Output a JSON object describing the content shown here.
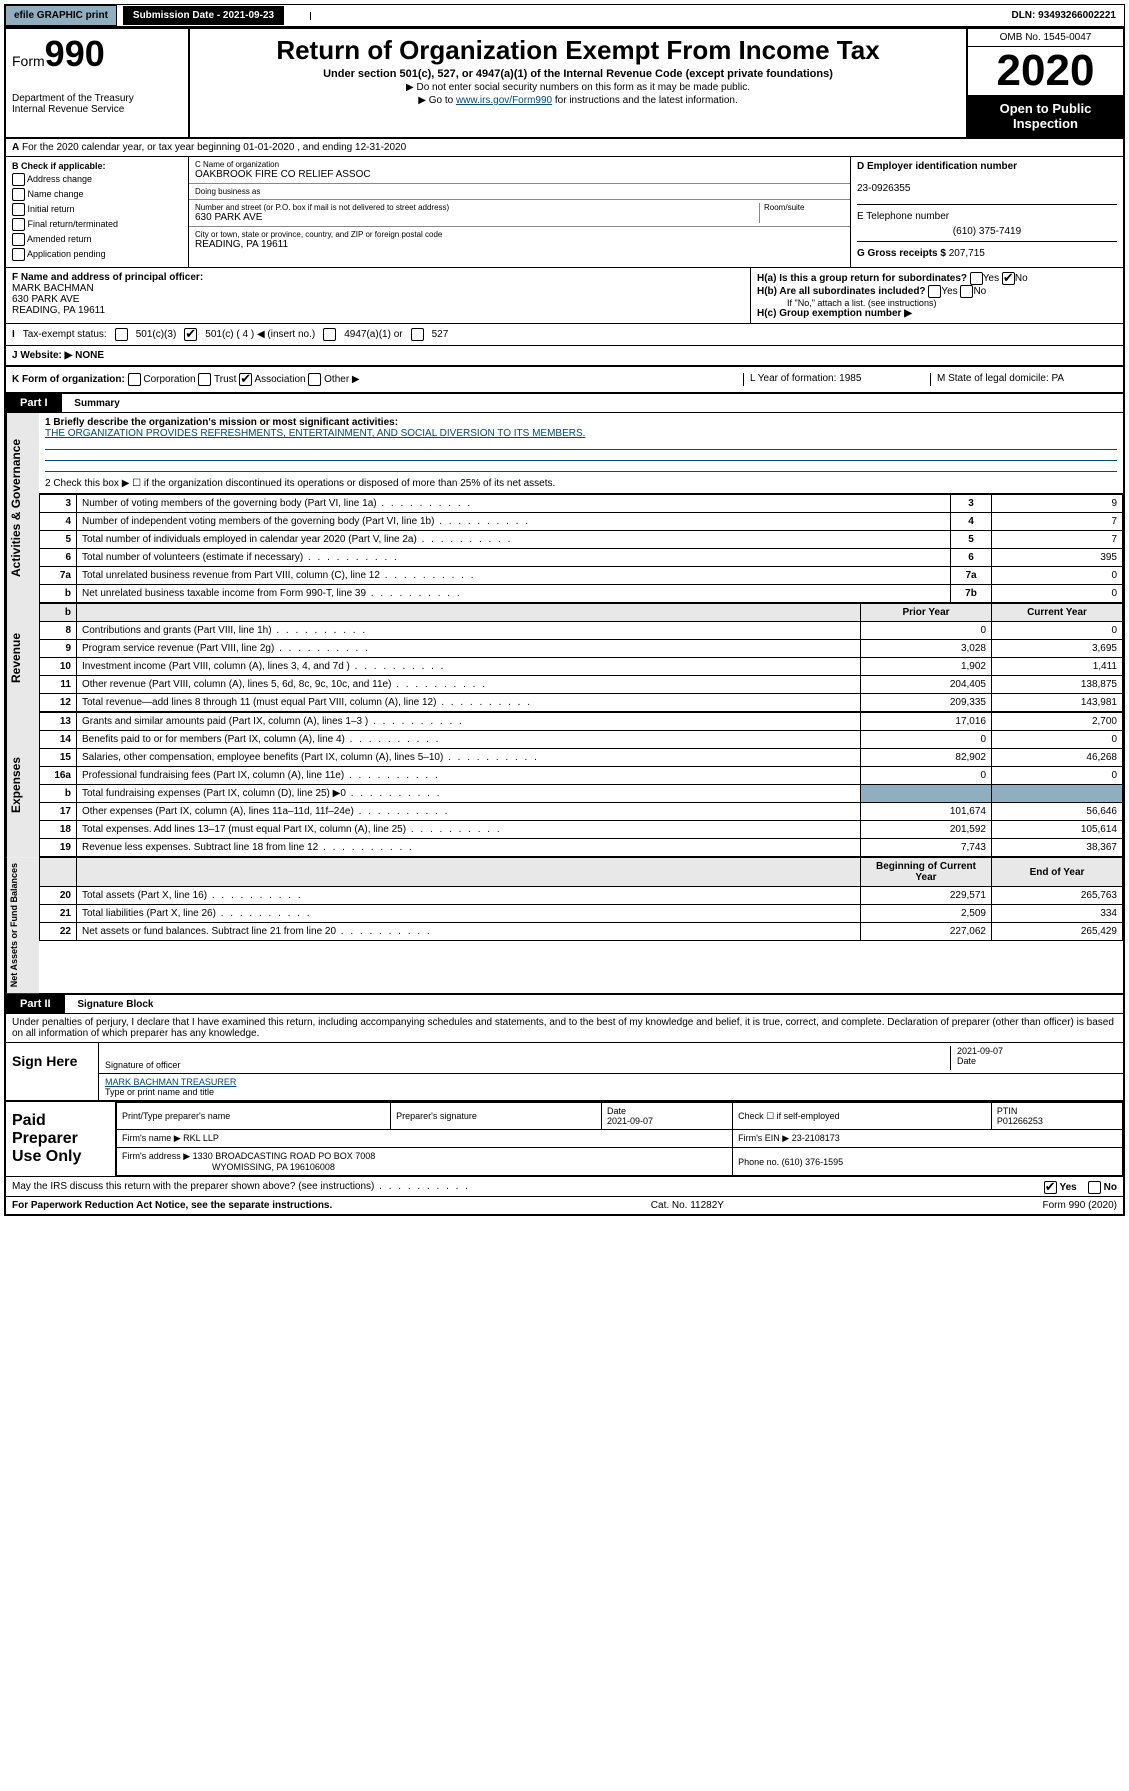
{
  "topbar": {
    "efile": "efile GRAPHIC print",
    "submission_label": "Submission Date - 2021-09-23",
    "dln": "DLN: 93493266002221"
  },
  "header": {
    "form_prefix": "Form",
    "form_number": "990",
    "dept": "Department of the Treasury",
    "irs": "Internal Revenue Service",
    "title": "Return of Organization Exempt From Income Tax",
    "subtitle": "Under section 501(c), 527, or 4947(a)(1) of the Internal Revenue Code (except private foundations)",
    "note1": "▶ Do not enter social security numbers on this form as it may be made public.",
    "note2_pre": "▶ Go to ",
    "note2_link": "www.irs.gov/Form990",
    "note2_post": " for instructions and the latest information.",
    "omb": "OMB No. 1545-0047",
    "year": "2020",
    "open": "Open to Public Inspection"
  },
  "rowA": "For the 2020 calendar year, or tax year beginning 01-01-2020  , and ending 12-31-2020",
  "sectionB": {
    "heading": "B Check if applicable:",
    "items": [
      "Address change",
      "Name change",
      "Initial return",
      "Final return/terminated",
      "Amended return",
      "Application pending"
    ]
  },
  "sectionC": {
    "name_lbl": "C Name of organization",
    "name": "OAKBROOK FIRE CO RELIEF ASSOC",
    "dba_lbl": "Doing business as",
    "dba": "",
    "addr_lbl": "Number and street (or P.O. box if mail is not delivered to street address)",
    "room_lbl": "Room/suite",
    "addr": "630 PARK AVE",
    "city_lbl": "City or town, state or province, country, and ZIP or foreign postal code",
    "city": "READING, PA  19611"
  },
  "sectionD": {
    "ein_lbl": "D Employer identification number",
    "ein": "23-0926355",
    "phone_lbl": "E Telephone number",
    "phone": "(610) 375-7419",
    "gross_lbl": "G Gross receipts $",
    "gross": "207,715"
  },
  "sectionF": {
    "lbl": "F Name and address of principal officer:",
    "name": "MARK BACHMAN",
    "addr1": "630 PARK AVE",
    "addr2": "READING, PA  19611"
  },
  "sectionH": {
    "ha": "H(a)  Is this a group return for subordinates?",
    "hb": "H(b)  Are all subordinates included?",
    "hb_note": "If \"No,\" attach a list. (see instructions)",
    "hc": "H(c)  Group exemption number ▶"
  },
  "taxExempt": {
    "lbl": "Tax-exempt status:",
    "c3": "501(c)(3)",
    "c": "501(c) ( 4 ) ◀ (insert no.)",
    "a1": "4947(a)(1) or",
    "s527": "527"
  },
  "websiteJ": {
    "lbl": "J  Website: ▶",
    "val": "NONE"
  },
  "rowK": {
    "k": "K Form of organization:",
    "corp": "Corporation",
    "trust": "Trust",
    "assoc": "Association",
    "other": "Other ▶",
    "l": "L Year of formation: 1985",
    "m": "M State of legal domicile: PA"
  },
  "part1": {
    "header": "Part I",
    "title": "Summary",
    "q1": "1  Briefly describe the organization's mission or most significant activities:",
    "mission": "THE ORGANIZATION PROVIDES REFRESHMENTS, ENTERTAINMENT, AND SOCIAL DIVERSION TO ITS MEMBERS.",
    "q2": "2  Check this box ▶ ☐  if the organization discontinued its operations or disposed of more than 25% of its net assets."
  },
  "side_labels": {
    "gov": "Activities & Governance",
    "rev": "Revenue",
    "exp": "Expenses",
    "net": "Net Assets or Fund Balances"
  },
  "governance_rows": [
    {
      "n": "3",
      "d": "Number of voting members of the governing body (Part VI, line 1a)",
      "box": "3",
      "v": "9"
    },
    {
      "n": "4",
      "d": "Number of independent voting members of the governing body (Part VI, line 1b)",
      "box": "4",
      "v": "7"
    },
    {
      "n": "5",
      "d": "Total number of individuals employed in calendar year 2020 (Part V, line 2a)",
      "box": "5",
      "v": "7"
    },
    {
      "n": "6",
      "d": "Total number of volunteers (estimate if necessary)",
      "box": "6",
      "v": "395"
    },
    {
      "n": "7a",
      "d": "Total unrelated business revenue from Part VIII, column (C), line 12",
      "box": "7a",
      "v": "0"
    },
    {
      "n": "b",
      "d": "Net unrelated business taxable income from Form 990-T, line 39",
      "box": "7b",
      "v": "0"
    }
  ],
  "year_headers": {
    "prior": "Prior Year",
    "current": "Current Year"
  },
  "revenue_rows": [
    {
      "n": "8",
      "d": "Contributions and grants (Part VIII, line 1h)",
      "p": "0",
      "c": "0"
    },
    {
      "n": "9",
      "d": "Program service revenue (Part VIII, line 2g)",
      "p": "3,028",
      "c": "3,695"
    },
    {
      "n": "10",
      "d": "Investment income (Part VIII, column (A), lines 3, 4, and 7d )",
      "p": "1,902",
      "c": "1,411"
    },
    {
      "n": "11",
      "d": "Other revenue (Part VIII, column (A), lines 5, 6d, 8c, 9c, 10c, and 11e)",
      "p": "204,405",
      "c": "138,875"
    },
    {
      "n": "12",
      "d": "Total revenue—add lines 8 through 11 (must equal Part VIII, column (A), line 12)",
      "p": "209,335",
      "c": "143,981"
    }
  ],
  "expense_rows": [
    {
      "n": "13",
      "d": "Grants and similar amounts paid (Part IX, column (A), lines 1–3 )",
      "p": "17,016",
      "c": "2,700"
    },
    {
      "n": "14",
      "d": "Benefits paid to or for members (Part IX, column (A), line 4)",
      "p": "0",
      "c": "0"
    },
    {
      "n": "15",
      "d": "Salaries, other compensation, employee benefits (Part IX, column (A), lines 5–10)",
      "p": "82,902",
      "c": "46,268"
    },
    {
      "n": "16a",
      "d": "Professional fundraising fees (Part IX, column (A), line 11e)",
      "p": "0",
      "c": "0"
    },
    {
      "n": "b",
      "d": "Total fundraising expenses (Part IX, column (D), line 25) ▶0",
      "p": "",
      "c": ""
    },
    {
      "n": "17",
      "d": "Other expenses (Part IX, column (A), lines 11a–11d, 11f–24e)",
      "p": "101,674",
      "c": "56,646"
    },
    {
      "n": "18",
      "d": "Total expenses. Add lines 13–17 (must equal Part IX, column (A), line 25)",
      "p": "201,592",
      "c": "105,614"
    },
    {
      "n": "19",
      "d": "Revenue less expenses. Subtract line 18 from line 12",
      "p": "7,743",
      "c": "38,367"
    }
  ],
  "net_headers": {
    "begin": "Beginning of Current Year",
    "end": "End of Year"
  },
  "net_rows": [
    {
      "n": "20",
      "d": "Total assets (Part X, line 16)",
      "p": "229,571",
      "c": "265,763"
    },
    {
      "n": "21",
      "d": "Total liabilities (Part X, line 26)",
      "p": "2,509",
      "c": "334"
    },
    {
      "n": "22",
      "d": "Net assets or fund balances. Subtract line 21 from line 20",
      "p": "227,062",
      "c": "265,429"
    }
  ],
  "part2": {
    "header": "Part II",
    "title": "Signature Block",
    "penalties": "Under penalties of perjury, I declare that I have examined this return, including accompanying schedules and statements, and to the best of my knowledge and belief, it is true, correct, and complete. Declaration of preparer (other than officer) is based on all information of which preparer has any knowledge."
  },
  "sign": {
    "here": "Sign Here",
    "sig_lbl": "Signature of officer",
    "date1": "2021-09-07",
    "date_lbl": "Date",
    "name": "MARK BACHMAN  TREASURER",
    "name_lbl": "Type or print name and title"
  },
  "preparer": {
    "label": "Paid Preparer Use Only",
    "h1": "Print/Type preparer's name",
    "h2": "Preparer's signature",
    "h3": "Date",
    "h4": "Check ☐ if self-employed",
    "h5": "PTIN",
    "date": "2021-09-07",
    "ptin": "P01266253",
    "firm_lbl": "Firm's name    ▶",
    "firm": "RKL LLP",
    "firm_ein_lbl": "Firm's EIN ▶",
    "firm_ein": "23-2108173",
    "addr_lbl": "Firm's address ▶",
    "addr": "1330 BROADCASTING ROAD PO BOX 7008",
    "addr2": "WYOMISSING, PA  196106008",
    "phone_lbl": "Phone no.",
    "phone": "(610) 376-1595"
  },
  "discuss": "May the IRS discuss this return with the preparer shown above? (see instructions)",
  "yes": "Yes",
  "no": "No",
  "footer": {
    "left": "For Paperwork Reduction Act Notice, see the separate instructions.",
    "mid": "Cat. No. 11282Y",
    "right": "Form 990 (2020)"
  }
}
